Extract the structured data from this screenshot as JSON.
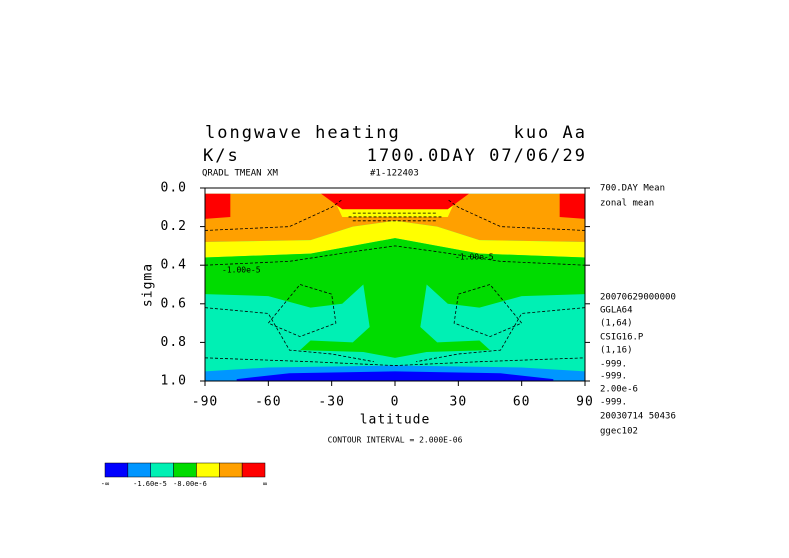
{
  "chart_data": {
    "type": "contour",
    "title": "longwave heating",
    "model": "kuo Aa",
    "units": "K/s",
    "time": "1700.0DAY 07/06/29",
    "variable": "QRADL TMEAN XM",
    "run": "#1-122403",
    "xlabel": "latitude",
    "ylabel": "sigma",
    "xlim": [
      -90,
      90
    ],
    "xticks": [
      -90,
      -60,
      -30,
      0,
      30,
      60,
      90
    ],
    "ylim": [
      1,
      0
    ],
    "yticks": [
      {
        "value": 0,
        "label": "0.0"
      },
      {
        "value": 0.2,
        "label": "0.2"
      },
      {
        "value": 0.4,
        "label": "0.4"
      },
      {
        "value": 0.6,
        "label": "0.6"
      },
      {
        "value": 0.8,
        "label": "0.8"
      },
      {
        "value": 1,
        "label": "1.0"
      }
    ],
    "contour_labels": [
      "-1.00e-5",
      "-1.00e-5"
    ],
    "footnote": "CONTOUR INTERVAL = 2.000E-06",
    "side_notes": [
      "700.DAY Mean",
      "zonal mean",
      "20070629000000",
      "GGLA64",
      "(1,64)",
      "CSIG16.P",
      "(1,16)",
      "-999.",
      "-999.",
      "2.00e-6",
      "-999.",
      "20030714  50436",
      "ggec102"
    ],
    "colorbar": {
      "colors": [
        "#0000ff",
        "#0096ff",
        "#00f0b4",
        "#00dc00",
        "#ffff00",
        "#ffa000",
        "#ff0000"
      ],
      "labels": [
        "-∞",
        "-1.60e-5",
        "-8.00e-6",
        "∞"
      ]
    }
  }
}
